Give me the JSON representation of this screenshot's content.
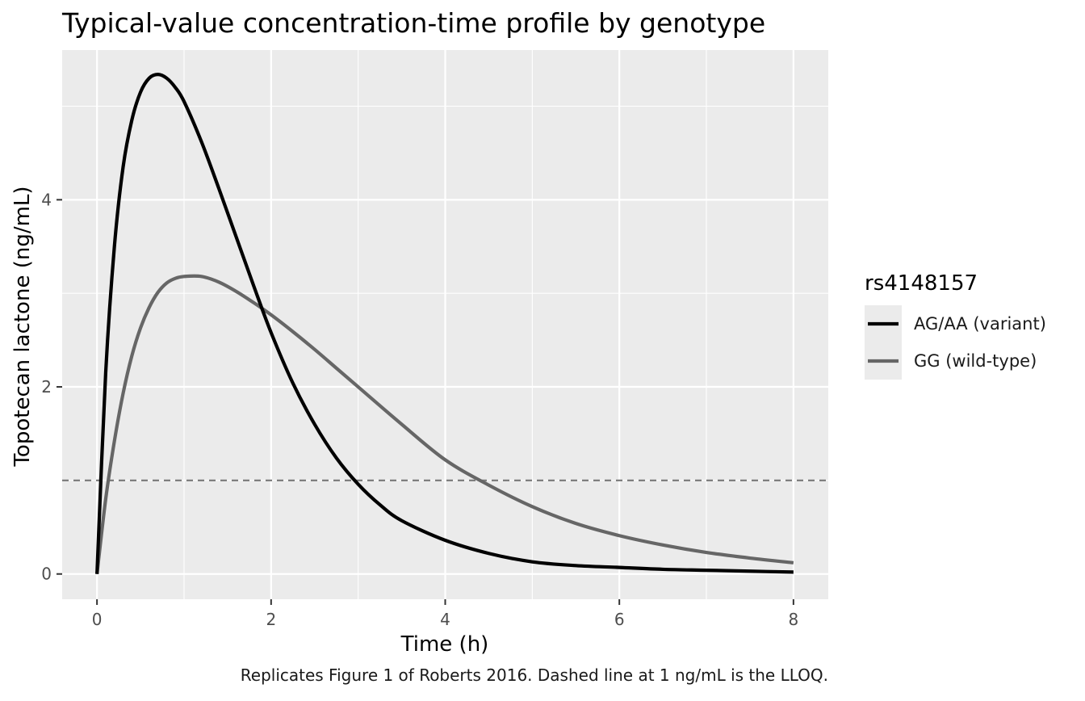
{
  "chart_data": {
    "type": "line",
    "title": "Typical-value concentration-time profile by genotype",
    "xlabel": "Time (h)",
    "ylabel": "Topotecan lactone (ng/mL)",
    "caption": "Replicates Figure 1 of Roberts 2016. Dashed line at 1 ng/mL is the LLOQ.",
    "xlim": [
      -0.4,
      8.4
    ],
    "ylim": [
      -0.27,
      5.6
    ],
    "x_ticks": [
      0,
      2,
      4,
      6,
      8
    ],
    "x_tick_labels": [
      "0",
      "2",
      "4",
      "6",
      "8"
    ],
    "y_ticks": [
      0,
      2,
      4
    ],
    "y_tick_labels": [
      "0",
      "2",
      "4"
    ],
    "grid": true,
    "legend": {
      "title": "rs4148157",
      "position": "right"
    },
    "reference_lines": [
      {
        "axis": "y",
        "value": 1,
        "style": "dashed",
        "color": "#7f7f7f"
      }
    ],
    "series": [
      {
        "name": "AG/AA (variant)",
        "color": "#000000",
        "x": [
          0,
          0.1,
          0.2,
          0.3,
          0.4,
          0.5,
          0.6,
          0.7,
          0.8,
          0.9,
          1.0,
          1.2,
          1.4,
          1.6,
          1.8,
          2.0,
          2.25,
          2.5,
          2.75,
          3.0,
          3.25,
          3.5,
          4.0,
          4.5,
          5.0,
          5.5,
          6.0,
          6.5,
          7.0,
          7.5,
          8.0
        ],
        "values": [
          0,
          2.15,
          3.5,
          4.35,
          4.85,
          5.15,
          5.3,
          5.34,
          5.3,
          5.2,
          5.05,
          4.62,
          4.12,
          3.6,
          3.08,
          2.58,
          2.04,
          1.6,
          1.24,
          0.96,
          0.74,
          0.57,
          0.36,
          0.22,
          0.13,
          0.09,
          0.07,
          0.05,
          0.04,
          0.03,
          0.02
        ]
      },
      {
        "name": "GG (wild-type)",
        "color": "#666666",
        "x": [
          0,
          0.1,
          0.2,
          0.3,
          0.4,
          0.5,
          0.6,
          0.7,
          0.8,
          0.9,
          1.0,
          1.2,
          1.4,
          1.6,
          1.8,
          2.0,
          2.25,
          2.5,
          2.75,
          3.0,
          3.5,
          4.0,
          4.5,
          5.0,
          5.5,
          6.0,
          6.5,
          7.0,
          7.5,
          8.0
        ],
        "values": [
          0,
          0.8,
          1.42,
          1.93,
          2.33,
          2.63,
          2.85,
          3.01,
          3.11,
          3.16,
          3.18,
          3.18,
          3.12,
          3.02,
          2.9,
          2.77,
          2.59,
          2.4,
          2.2,
          2.0,
          1.6,
          1.22,
          0.95,
          0.72,
          0.54,
          0.41,
          0.31,
          0.23,
          0.17,
          0.12
        ]
      }
    ]
  }
}
